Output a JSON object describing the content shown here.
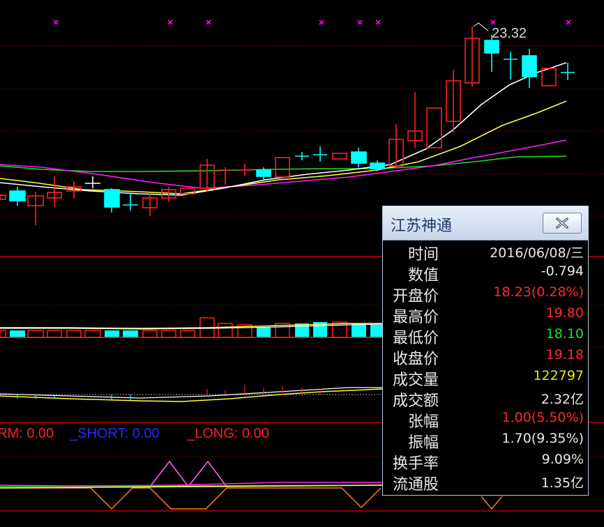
{
  "price_tag": "23.32",
  "indicator": {
    "labels": [
      {
        "key": "rm",
        "text": "RM: 0.00",
        "color": "#ff2020"
      },
      {
        "key": "short",
        "text": "_SHORT: 0.00",
        "color": "#2a2aff"
      },
      {
        "key": "long",
        "text": "_LONG: 0.00",
        "color": "#ff2020"
      }
    ]
  },
  "popup": {
    "title": "江苏神通",
    "close_icon": "close-x-icon",
    "rows": [
      {
        "key": "time",
        "label": "时间",
        "value": "2016/06/08/三",
        "color": "#e8e8e8"
      },
      {
        "key": "value",
        "label": "数值",
        "value": "-0.794",
        "color": "#e8e8e8"
      },
      {
        "key": "open",
        "label": "开盘价",
        "value": "18.23(0.28%)",
        "color": "#ff2a2a"
      },
      {
        "key": "high",
        "label": "最高价",
        "value": "19.80",
        "color": "#ff2a2a"
      },
      {
        "key": "low",
        "label": "最低价",
        "value": "18.10",
        "color": "#22dd22"
      },
      {
        "key": "close",
        "label": "收盘价",
        "value": "19.18",
        "color": "#ff2a2a"
      },
      {
        "key": "volume",
        "label": "成交量",
        "value": "122797",
        "color": "#e8e800"
      },
      {
        "key": "amount",
        "label": "成交额",
        "value": "2.32亿",
        "color": "#e8e8e8"
      },
      {
        "key": "change",
        "label": "张幅",
        "value": "1.00(5.50%)",
        "color": "#ff2a2a"
      },
      {
        "key": "amplitude",
        "label": "振幅",
        "value": "1.70(9.35%)",
        "color": "#e8e8e8"
      },
      {
        "key": "turnover",
        "label": "换手率",
        "value": "9.09%",
        "color": "#e8e8e8"
      },
      {
        "key": "float",
        "label": "流通股",
        "value": "1.35亿",
        "color": "#e8e8e8"
      }
    ]
  },
  "colors": {
    "up": "#ff2020",
    "down": "#00ffff",
    "ma5": "#ffffff",
    "ma10": "#ffff40",
    "ma20": "#ff20ff",
    "ma30": "#20e020",
    "grid": "#c00000",
    "marker": "#ff00ff"
  }
}
